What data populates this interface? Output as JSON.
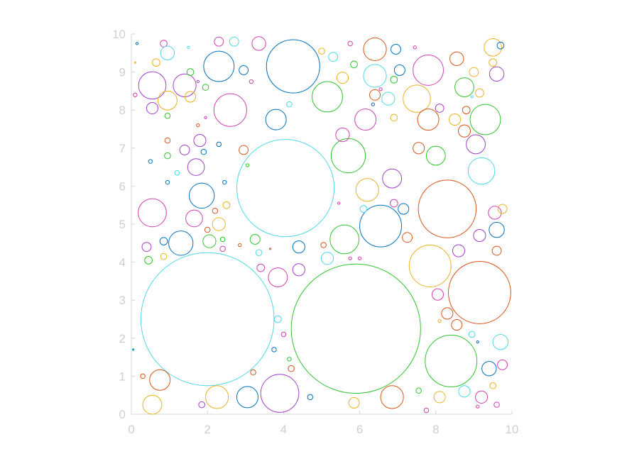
{
  "chart_data": {
    "type": "scatter",
    "xlim": [
      0,
      10
    ],
    "ylim": [
      0,
      10
    ],
    "x_ticks": [
      "0",
      "2",
      "4",
      "6",
      "8",
      "10"
    ],
    "y_ticks": [
      "0",
      "1",
      "2",
      "3",
      "4",
      "5",
      "6",
      "7",
      "8",
      "9",
      "10"
    ],
    "grid": false,
    "legend": "none",
    "palette": {
      "blue": "#0072bd",
      "orange": "#d95319",
      "yellow": "#edb120",
      "purple": "#a040c8",
      "green": "#2ec42e",
      "cyan": "#4dd9e8",
      "magenta": "#d040b0"
    },
    "circles": [
      {
        "cx": 2.0,
        "cy": 2.5,
        "r": 1.75,
        "color": "cyan"
      },
      {
        "cx": 5.9,
        "cy": 2.25,
        "r": 1.7,
        "color": "green"
      },
      {
        "cx": 4.05,
        "cy": 5.95,
        "r": 1.28,
        "color": "cyan"
      },
      {
        "cx": 9.15,
        "cy": 3.2,
        "r": 0.82,
        "color": "orange"
      },
      {
        "cx": 8.3,
        "cy": 5.4,
        "r": 0.76,
        "color": "orange"
      },
      {
        "cx": 4.25,
        "cy": 9.15,
        "r": 0.7,
        "color": "blue"
      },
      {
        "cx": 8.4,
        "cy": 1.4,
        "r": 0.68,
        "color": "green"
      },
      {
        "cx": 6.55,
        "cy": 4.95,
        "r": 0.55,
        "color": "blue"
      },
      {
        "cx": 7.85,
        "cy": 3.9,
        "r": 0.55,
        "color": "yellow"
      },
      {
        "cx": 3.9,
        "cy": 0.55,
        "r": 0.5,
        "color": "purple"
      },
      {
        "cx": 2.6,
        "cy": 8.0,
        "r": 0.43,
        "color": "magenta"
      },
      {
        "cx": 7.8,
        "cy": 9.05,
        "r": 0.4,
        "color": "magenta"
      },
      {
        "cx": 5.7,
        "cy": 6.8,
        "r": 0.45,
        "color": "green"
      },
      {
        "cx": 5.6,
        "cy": 4.6,
        "r": 0.38,
        "color": "green"
      },
      {
        "cx": 2.3,
        "cy": 9.15,
        "r": 0.4,
        "color": "blue"
      },
      {
        "cx": 5.15,
        "cy": 8.35,
        "r": 0.4,
        "color": "green"
      },
      {
        "cx": 9.3,
        "cy": 7.75,
        "r": 0.4,
        "color": "green"
      },
      {
        "cx": 0.55,
        "cy": 5.3,
        "r": 0.37,
        "color": "magenta"
      },
      {
        "cx": 0.55,
        "cy": 8.65,
        "r": 0.36,
        "color": "purple"
      },
      {
        "cx": 7.5,
        "cy": 8.3,
        "r": 0.36,
        "color": "yellow"
      },
      {
        "cx": 9.2,
        "cy": 6.4,
        "r": 0.35,
        "color": "cyan"
      },
      {
        "cx": 1.3,
        "cy": 4.5,
        "r": 0.32,
        "color": "blue"
      },
      {
        "cx": 1.85,
        "cy": 5.75,
        "r": 0.33,
        "color": "blue"
      },
      {
        "cx": 6.4,
        "cy": 9.6,
        "r": 0.3,
        "color": "orange"
      },
      {
        "cx": 6.4,
        "cy": 8.9,
        "r": 0.3,
        "color": "cyan"
      },
      {
        "cx": 2.25,
        "cy": 0.45,
        "r": 0.3,
        "color": "yellow"
      },
      {
        "cx": 6.15,
        "cy": 7.75,
        "r": 0.28,
        "color": "magenta"
      },
      {
        "cx": 3.8,
        "cy": 7.75,
        "r": 0.27,
        "color": "blue"
      },
      {
        "cx": 1.4,
        "cy": 8.65,
        "r": 0.3,
        "color": "purple"
      },
      {
        "cx": 6.2,
        "cy": 5.9,
        "r": 0.3,
        "color": "yellow"
      },
      {
        "cx": 3.05,
        "cy": 0.45,
        "r": 0.28,
        "color": "blue"
      },
      {
        "cx": 6.85,
        "cy": 0.45,
        "r": 0.3,
        "color": "orange"
      },
      {
        "cx": 7.8,
        "cy": 7.75,
        "r": 0.28,
        "color": "orange"
      },
      {
        "cx": 0.75,
        "cy": 0.9,
        "r": 0.27,
        "color": "orange"
      },
      {
        "cx": 0.95,
        "cy": 8.25,
        "r": 0.25,
        "color": "yellow"
      },
      {
        "cx": 9.05,
        "cy": 7.1,
        "r": 0.25,
        "color": "purple"
      },
      {
        "cx": 6.85,
        "cy": 6.2,
        "r": 0.25,
        "color": "purple"
      },
      {
        "cx": 1.7,
        "cy": 6.5,
        "r": 0.22,
        "color": "purple"
      },
      {
        "cx": 8.75,
        "cy": 8.6,
        "r": 0.25,
        "color": "green"
      },
      {
        "cx": 3.85,
        "cy": 3.6,
        "r": 0.25,
        "color": "magenta"
      },
      {
        "cx": 9.5,
        "cy": 9.65,
        "r": 0.23,
        "color": "yellow"
      },
      {
        "cx": 1.65,
        "cy": 5.15,
        "r": 0.22,
        "color": "magenta"
      },
      {
        "cx": 8.0,
        "cy": 6.8,
        "r": 0.25,
        "color": "green"
      },
      {
        "cx": 2.05,
        "cy": 4.55,
        "r": 0.17,
        "color": "green"
      },
      {
        "cx": 2.3,
        "cy": 5.0,
        "r": 0.17,
        "color": "yellow"
      },
      {
        "cx": 5.55,
        "cy": 7.35,
        "r": 0.18,
        "color": "magenta"
      },
      {
        "cx": 9.6,
        "cy": 4.85,
        "r": 0.2,
        "color": "blue"
      },
      {
        "cx": 9.7,
        "cy": 1.9,
        "r": 0.2,
        "color": "cyan"
      },
      {
        "cx": 9.4,
        "cy": 1.2,
        "r": 0.19,
        "color": "blue"
      },
      {
        "cx": 9.6,
        "cy": 8.95,
        "r": 0.19,
        "color": "purple"
      },
      {
        "cx": 8.6,
        "cy": 4.3,
        "r": 0.16,
        "color": "purple"
      },
      {
        "cx": 9.55,
        "cy": 5.3,
        "r": 0.17,
        "color": "magenta"
      },
      {
        "cx": 9.15,
        "cy": 4.7,
        "r": 0.16,
        "color": "purple"
      },
      {
        "cx": 8.55,
        "cy": 9.35,
        "r": 0.18,
        "color": "orange"
      },
      {
        "cx": 6.75,
        "cy": 8.3,
        "r": 0.17,
        "color": "cyan"
      },
      {
        "cx": 7.15,
        "cy": 5.4,
        "r": 0.14,
        "color": "blue"
      },
      {
        "cx": 7.25,
        "cy": 4.65,
        "r": 0.13,
        "color": "orange"
      },
      {
        "cx": 8.05,
        "cy": 3.15,
        "r": 0.15,
        "color": "magenta"
      },
      {
        "cx": 8.3,
        "cy": 2.65,
        "r": 0.15,
        "color": "orange"
      },
      {
        "cx": 8.55,
        "cy": 2.35,
        "r": 0.14,
        "color": "orange"
      },
      {
        "cx": 9.2,
        "cy": 0.45,
        "r": 0.16,
        "color": "magenta"
      },
      {
        "cx": 8.75,
        "cy": 0.6,
        "r": 0.15,
        "color": "cyan"
      },
      {
        "cx": 8.1,
        "cy": 0.45,
        "r": 0.15,
        "color": "yellow"
      },
      {
        "cx": 9.75,
        "cy": 1.3,
        "r": 0.13,
        "color": "magenta"
      },
      {
        "cx": 9.75,
        "cy": 5.4,
        "r": 0.12,
        "color": "yellow"
      },
      {
        "cx": 9.6,
        "cy": 4.3,
        "r": 0.12,
        "color": "orange"
      },
      {
        "cx": 8.75,
        "cy": 7.45,
        "r": 0.16,
        "color": "orange"
      },
      {
        "cx": 8.5,
        "cy": 7.75,
        "r": 0.15,
        "color": "yellow"
      },
      {
        "cx": 8.1,
        "cy": 8.05,
        "r": 0.11,
        "color": "purple"
      },
      {
        "cx": 8.8,
        "cy": 8.0,
        "r": 0.1,
        "color": "orange"
      },
      {
        "cx": 9.0,
        "cy": 9.0,
        "r": 0.12,
        "color": "yellow"
      },
      {
        "cx": 9.15,
        "cy": 8.45,
        "r": 0.11,
        "color": "yellow"
      },
      {
        "cx": 9.7,
        "cy": 9.7,
        "r": 0.09,
        "color": "blue"
      },
      {
        "cx": 9.5,
        "cy": 9.25,
        "r": 0.1,
        "color": "yellow"
      },
      {
        "cx": 7.55,
        "cy": 7.0,
        "r": 0.15,
        "color": "orange"
      },
      {
        "cx": 7.05,
        "cy": 9.05,
        "r": 0.14,
        "color": "blue"
      },
      {
        "cx": 6.95,
        "cy": 9.6,
        "r": 0.13,
        "color": "blue"
      },
      {
        "cx": 6.4,
        "cy": 8.4,
        "r": 0.14,
        "color": "orange"
      },
      {
        "cx": 5.3,
        "cy": 9.4,
        "r": 0.12,
        "color": "cyan"
      },
      {
        "cx": 5.0,
        "cy": 9.55,
        "r": 0.08,
        "color": "yellow"
      },
      {
        "cx": 5.55,
        "cy": 8.85,
        "r": 0.15,
        "color": "yellow"
      },
      {
        "cx": 5.85,
        "cy": 9.2,
        "r": 0.09,
        "color": "green"
      },
      {
        "cx": 6.9,
        "cy": 8.8,
        "r": 0.09,
        "color": "green"
      },
      {
        "cx": 6.9,
        "cy": 7.8,
        "r": 0.09,
        "color": "yellow"
      },
      {
        "cx": 6.9,
        "cy": 5.55,
        "r": 0.1,
        "color": "magenta"
      },
      {
        "cx": 6.1,
        "cy": 5.4,
        "r": 0.09,
        "color": "cyan"
      },
      {
        "cx": 5.15,
        "cy": 4.1,
        "r": 0.16,
        "color": "cyan"
      },
      {
        "cx": 5.05,
        "cy": 4.45,
        "r": 0.07,
        "color": "orange"
      },
      {
        "cx": 5.85,
        "cy": 0.3,
        "r": 0.14,
        "color": "yellow"
      },
      {
        "cx": 7.55,
        "cy": 0.62,
        "r": 0.07,
        "color": "green"
      },
      {
        "cx": 4.4,
        "cy": 4.4,
        "r": 0.16,
        "color": "blue"
      },
      {
        "cx": 4.4,
        "cy": 3.8,
        "r": 0.16,
        "color": "purple"
      },
      {
        "cx": 3.25,
        "cy": 4.6,
        "r": 0.13,
        "color": "green"
      },
      {
        "cx": 3.4,
        "cy": 3.85,
        "r": 0.1,
        "color": "magenta"
      },
      {
        "cx": 3.35,
        "cy": 4.25,
        "r": 0.08,
        "color": "cyan"
      },
      {
        "cx": 3.85,
        "cy": 2.5,
        "r": 0.09,
        "color": "cyan"
      },
      {
        "cx": 4.7,
        "cy": 0.45,
        "r": 0.07,
        "color": "blue"
      },
      {
        "cx": 4.2,
        "cy": 1.2,
        "r": 0.08,
        "color": "orange"
      },
      {
        "cx": 3.2,
        "cy": 1.1,
        "r": 0.07,
        "color": "orange"
      },
      {
        "cx": 3.75,
        "cy": 1.7,
        "r": 0.06,
        "color": "blue"
      },
      {
        "cx": 4.0,
        "cy": 2.1,
        "r": 0.06,
        "color": "magenta"
      },
      {
        "cx": 4.15,
        "cy": 1.45,
        "r": 0.05,
        "color": "green"
      },
      {
        "cx": 2.95,
        "cy": 6.95,
        "r": 0.12,
        "color": "orange"
      },
      {
        "cx": 2.3,
        "cy": 7.1,
        "r": 0.06,
        "color": "blue"
      },
      {
        "cx": 1.8,
        "cy": 7.2,
        "r": 0.16,
        "color": "purple"
      },
      {
        "cx": 1.4,
        "cy": 6.95,
        "r": 0.13,
        "color": "purple"
      },
      {
        "cx": 1.9,
        "cy": 6.9,
        "r": 0.07,
        "color": "blue"
      },
      {
        "cx": 2.5,
        "cy": 5.5,
        "r": 0.09,
        "color": "yellow"
      },
      {
        "cx": 2.45,
        "cy": 6.1,
        "r": 0.05,
        "color": "blue"
      },
      {
        "cx": 2.2,
        "cy": 5.35,
        "r": 0.07,
        "color": "orange"
      },
      {
        "cx": 2.0,
        "cy": 4.85,
        "r": 0.07,
        "color": "orange"
      },
      {
        "cx": 2.4,
        "cy": 4.35,
        "r": 0.07,
        "color": "magenta"
      },
      {
        "cx": 2.4,
        "cy": 4.6,
        "r": 0.06,
        "color": "green"
      },
      {
        "cx": 0.85,
        "cy": 4.55,
        "r": 0.1,
        "color": "blue"
      },
      {
        "cx": 0.4,
        "cy": 4.4,
        "r": 0.12,
        "color": "purple"
      },
      {
        "cx": 0.45,
        "cy": 4.05,
        "r": 0.1,
        "color": "green"
      },
      {
        "cx": 0.85,
        "cy": 4.15,
        "r": 0.08,
        "color": "yellow"
      },
      {
        "cx": 0.55,
        "cy": 8.05,
        "r": 0.15,
        "color": "purple"
      },
      {
        "cx": 0.95,
        "cy": 7.85,
        "r": 0.07,
        "color": "green"
      },
      {
        "cx": 0.95,
        "cy": 7.2,
        "r": 0.07,
        "color": "orange"
      },
      {
        "cx": 0.95,
        "cy": 6.8,
        "r": 0.08,
        "color": "green"
      },
      {
        "cx": 0.5,
        "cy": 6.65,
        "r": 0.05,
        "color": "blue"
      },
      {
        "cx": 1.2,
        "cy": 6.35,
        "r": 0.06,
        "color": "cyan"
      },
      {
        "cx": 0.95,
        "cy": 6.1,
        "r": 0.05,
        "color": "blue"
      },
      {
        "cx": 0.65,
        "cy": 9.25,
        "r": 0.1,
        "color": "yellow"
      },
      {
        "cx": 0.85,
        "cy": 9.75,
        "r": 0.09,
        "color": "magenta"
      },
      {
        "cx": 0.95,
        "cy": 9.5,
        "r": 0.18,
        "color": "cyan"
      },
      {
        "cx": 0.15,
        "cy": 9.75,
        "r": 0.03,
        "color": "blue"
      },
      {
        "cx": 0.1,
        "cy": 8.4,
        "r": 0.05,
        "color": "magenta"
      },
      {
        "cx": 1.55,
        "cy": 8.35,
        "r": 0.14,
        "color": "yellow"
      },
      {
        "cx": 1.55,
        "cy": 9.0,
        "r": 0.09,
        "color": "green"
      },
      {
        "cx": 1.5,
        "cy": 9.65,
        "r": 0.03,
        "color": "cyan"
      },
      {
        "cx": 1.95,
        "cy": 8.6,
        "r": 0.08,
        "color": "green"
      },
      {
        "cx": 2.3,
        "cy": 9.8,
        "r": 0.12,
        "color": "magenta"
      },
      {
        "cx": 2.7,
        "cy": 9.8,
        "r": 0.12,
        "color": "cyan"
      },
      {
        "cx": 3.35,
        "cy": 9.75,
        "r": 0.18,
        "color": "magenta"
      },
      {
        "cx": 2.95,
        "cy": 9.05,
        "r": 0.12,
        "color": "blue"
      },
      {
        "cx": 3.15,
        "cy": 8.75,
        "r": 0.05,
        "color": "magenta"
      },
      {
        "cx": 4.15,
        "cy": 8.15,
        "r": 0.07,
        "color": "cyan"
      },
      {
        "cx": 1.75,
        "cy": 7.6,
        "r": 0.04,
        "color": "orange"
      },
      {
        "cx": 1.95,
        "cy": 7.8,
        "r": 0.03,
        "color": "magenta"
      },
      {
        "cx": 0.55,
        "cy": 0.25,
        "r": 0.25,
        "color": "yellow"
      },
      {
        "cx": 0.3,
        "cy": 1.0,
        "r": 0.06,
        "color": "orange"
      },
      {
        "cx": 1.85,
        "cy": 0.25,
        "r": 0.08,
        "color": "purple"
      },
      {
        "cx": 9.1,
        "cy": 1.9,
        "r": 0.03,
        "color": "blue"
      },
      {
        "cx": 9.5,
        "cy": 0.75,
        "r": 0.08,
        "color": "yellow"
      },
      {
        "cx": 9.6,
        "cy": 0.25,
        "r": 0.07,
        "color": "magenta"
      },
      {
        "cx": 9.1,
        "cy": 0.2,
        "r": 0.04,
        "color": "magenta"
      },
      {
        "cx": 7.75,
        "cy": 0.1,
        "r": 0.06,
        "color": "magenta"
      },
      {
        "cx": 8.95,
        "cy": 2.1,
        "r": 0.08,
        "color": "cyan"
      },
      {
        "cx": 8.1,
        "cy": 2.45,
        "r": 0.04,
        "color": "yellow"
      },
      {
        "cx": 6.0,
        "cy": 4.1,
        "r": 0.04,
        "color": "magenta"
      },
      {
        "cx": 5.75,
        "cy": 4.1,
        "r": 0.04,
        "color": "magenta"
      },
      {
        "cx": 5.45,
        "cy": 5.55,
        "r": 0.03,
        "color": "magenta"
      },
      {
        "cx": 6.35,
        "cy": 8.15,
        "r": 0.04,
        "color": "blue"
      },
      {
        "cx": 6.55,
        "cy": 8.55,
        "r": 0.04,
        "color": "magenta"
      },
      {
        "cx": 7.45,
        "cy": 9.65,
        "r": 0.04,
        "color": "magenta"
      },
      {
        "cx": 5.75,
        "cy": 9.75,
        "r": 0.06,
        "color": "magenta"
      },
      {
        "cx": 8.95,
        "cy": 8.35,
        "r": 0.03,
        "color": "cyan"
      },
      {
        "cx": 3.05,
        "cy": 6.55,
        "r": 0.04,
        "color": "green"
      },
      {
        "cx": 2.85,
        "cy": 4.45,
        "r": 0.04,
        "color": "orange"
      },
      {
        "cx": 3.65,
        "cy": 4.35,
        "r": 0.02,
        "color": "orange"
      },
      {
        "cx": 1.75,
        "cy": 8.75,
        "r": 0.03,
        "color": "purple"
      },
      {
        "cx": 0.05,
        "cy": 1.7,
        "r": 0.02,
        "color": "blue"
      },
      {
        "cx": 0.1,
        "cy": 9.25,
        "r": 0.02,
        "color": "yellow"
      }
    ]
  }
}
